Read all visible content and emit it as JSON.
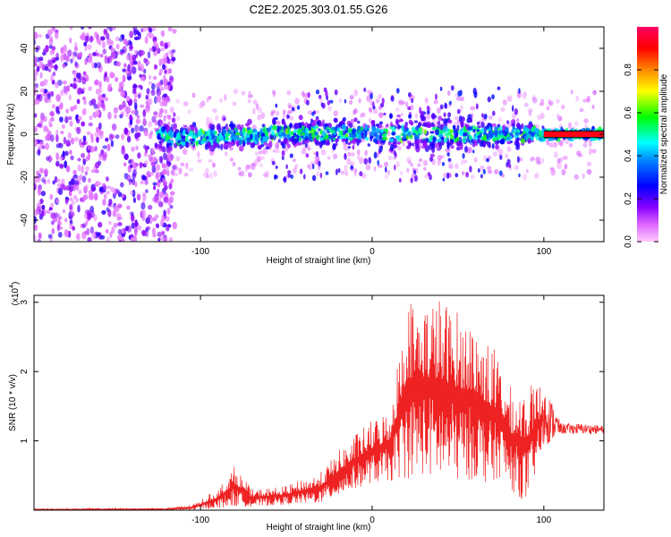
{
  "chart_data": [
    {
      "type": "heatmap",
      "title": "C2E2.2025.303.01.55.G26",
      "xlabel": "Height of straight line (km)",
      "ylabel": "Frequency (Hz)",
      "xlim": [
        -197,
        135
      ],
      "ylim": [
        -50,
        50
      ],
      "xticks": [
        -100,
        0,
        100
      ],
      "yticks": [
        -40,
        -20,
        0,
        20,
        40
      ],
      "colorbar": {
        "label": "Normalized spectral amplitude",
        "range": [
          0,
          1
        ],
        "ticks": [
          "0.0",
          "0.2",
          "0.4",
          "0.6",
          "0.8"
        ],
        "colors": [
          "#ffccff",
          "#cc33ff",
          "#6600ff",
          "#0000ff",
          "#00ffff",
          "#00ff00",
          "#ffff00",
          "#ff8800",
          "#ff0000",
          "#ff0066"
        ]
      },
      "regions": [
        {
          "name": "noise",
          "x_range": [
            -197,
            -115
          ],
          "freq_range": [
            -50,
            50
          ],
          "amplitude": "0.0-0.25"
        },
        {
          "name": "signal-band",
          "x_range": [
            -125,
            135
          ],
          "freq_center": 0,
          "freq_halfwidth": 8,
          "amplitude": "0.2-0.6"
        },
        {
          "name": "strong-line",
          "x_range": [
            100,
            135
          ],
          "freq_center": 0,
          "freq_halfwidth": 1,
          "amplitude": "0.9-1.0"
        }
      ]
    },
    {
      "type": "line",
      "xlabel": "Height of straight line (km)",
      "ylabel": "SNR (10 * v/v)",
      "y_scale_label": "(x10",
      "y_scale_exp": "4",
      "xlim": [
        -197,
        135
      ],
      "ylim": [
        0,
        3.1
      ],
      "xticks": [
        -100,
        0,
        100
      ],
      "yticks": [
        1,
        2,
        3
      ],
      "color": "#ee2222",
      "envelope": {
        "x": [
          -197,
          -120,
          -105,
          -90,
          -80,
          -70,
          -50,
          -30,
          -20,
          -10,
          0,
          10,
          15,
          20,
          30,
          40,
          50,
          60,
          70,
          75,
          80,
          90,
          100,
          110,
          120,
          135
        ],
        "max": [
          0.02,
          0.03,
          0.08,
          0.3,
          0.65,
          0.3,
          0.35,
          0.55,
          0.85,
          1.1,
          1.3,
          1.5,
          2.2,
          3.1,
          3.1,
          3.1,
          2.9,
          2.75,
          2.4,
          2.2,
          1.8,
          1.8,
          1.85,
          1.25,
          1.25,
          1.22
        ],
        "min": [
          0.0,
          0.0,
          0.0,
          0.03,
          0.05,
          0.05,
          0.08,
          0.1,
          0.2,
          0.3,
          0.4,
          0.4,
          0.45,
          0.45,
          0.5,
          0.4,
          0.4,
          0.45,
          0.35,
          0.5,
          0.3,
          0.1,
          0.9,
          1.1,
          1.1,
          1.1
        ]
      }
    }
  ]
}
